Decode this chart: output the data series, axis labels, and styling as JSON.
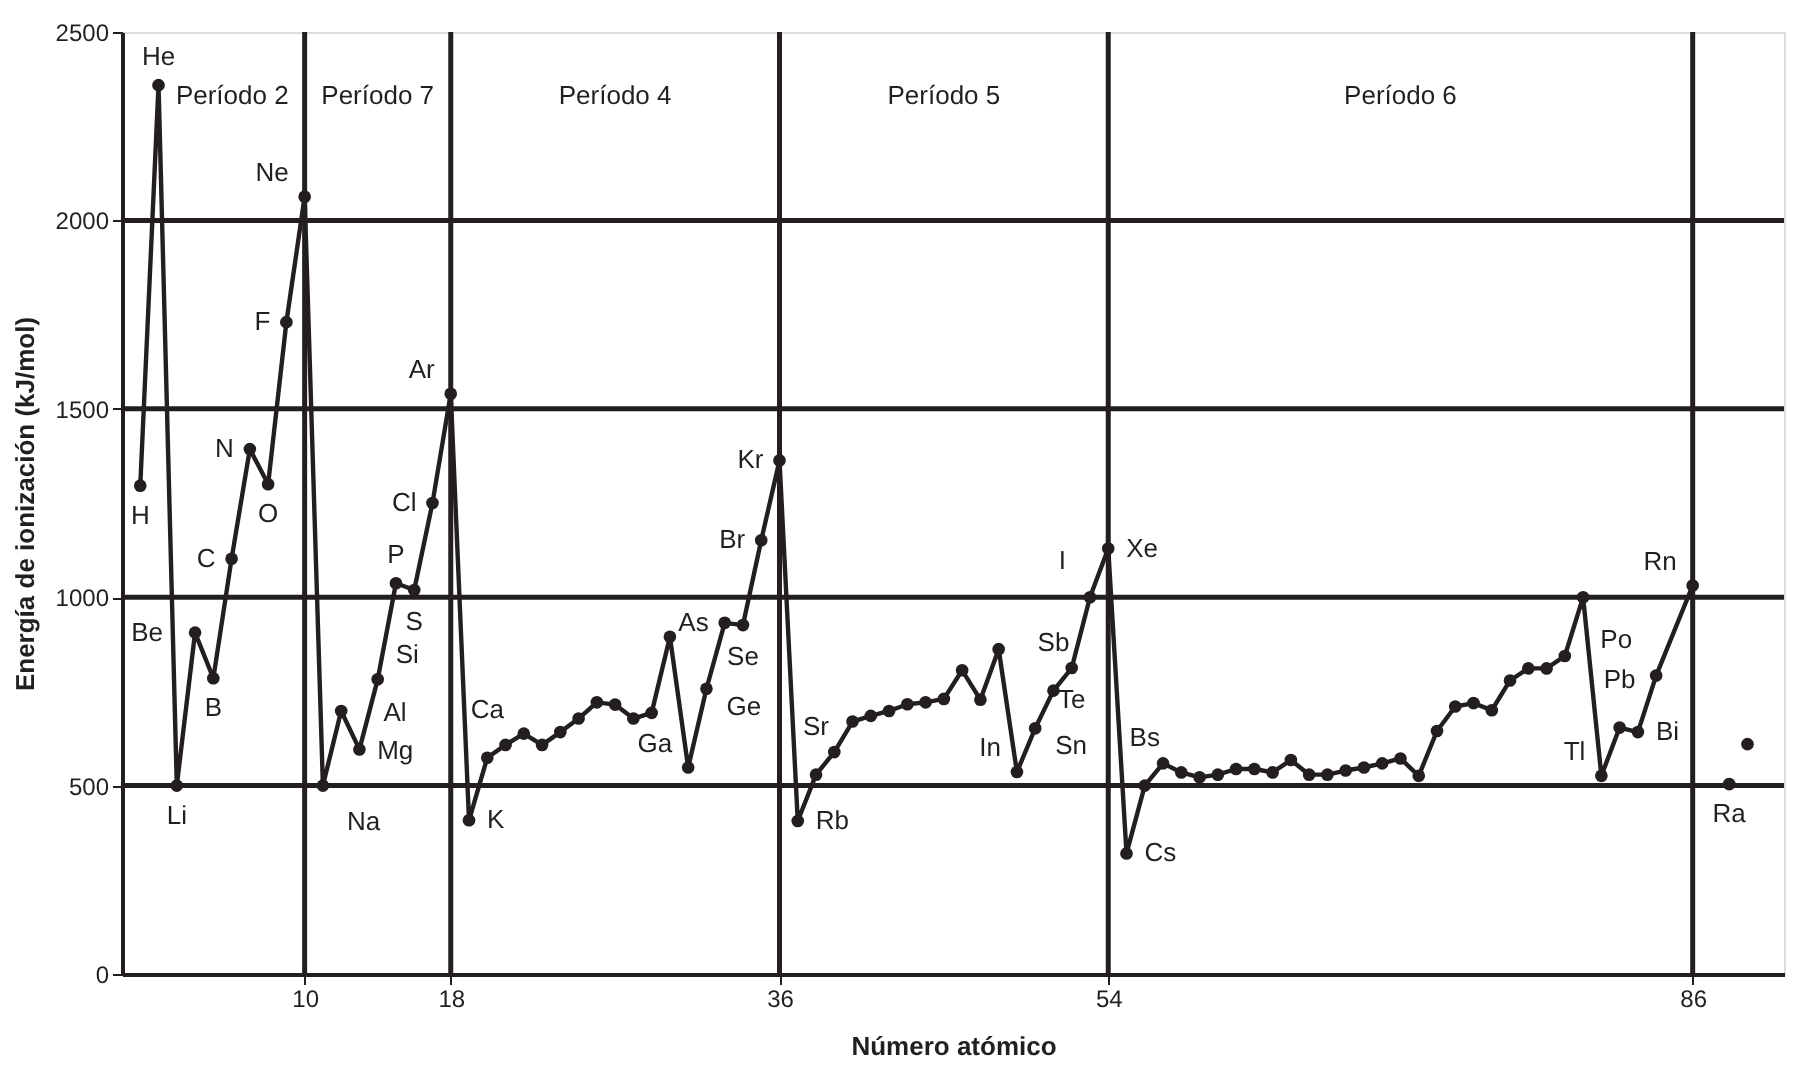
{
  "chart_data": {
    "type": "line",
    "xlabel": "Número atómico",
    "ylabel": "Energía de ionización (kJ/mol)",
    "xlim": [
      0,
      91
    ],
    "xticks": [
      10,
      18,
      36,
      54,
      86
    ],
    "ylim": [
      0,
      2500
    ],
    "yticks": [
      0,
      500,
      1000,
      1500,
      2000,
      2500
    ],
    "marker": "circle",
    "line_style": "solid",
    "series": [
      {
        "color": "#231f20",
        "x": [
          1,
          2,
          3,
          4,
          5,
          6,
          7,
          8,
          9,
          10,
          11,
          12,
          13,
          14,
          15,
          16,
          17,
          18,
          19,
          20,
          21,
          22,
          23,
          24,
          25,
          26,
          27,
          28,
          29,
          30,
          31,
          32,
          33,
          34,
          35,
          36,
          37,
          38,
          39,
          40,
          41,
          42,
          43,
          44,
          45,
          46,
          47,
          48,
          49,
          50,
          51,
          52,
          53,
          54,
          55,
          56,
          57,
          58,
          59,
          60,
          61,
          62,
          63,
          64,
          65,
          66,
          67,
          68,
          69,
          70,
          71,
          72,
          73,
          74,
          75,
          76,
          77,
          78,
          79,
          80,
          81,
          82,
          83,
          84,
          86
        ],
        "values": [
          1296,
          2359,
          500,
          906,
          785,
          1102,
          1393,
          1300,
          1730,
          2063,
          500,
          698,
          596,
          782,
          1037,
          1019,
          1250,
          1540,
          408,
          574,
          608,
          638,
          608,
          642,
          678,
          721,
          715,
          678,
          693,
          895,
          548,
          757,
          932,
          926,
          1151,
          1363,
          406,
          529,
          589,
          670,
          685,
          698,
          716,
          721,
          730,
          806,
          728,
          862,
          536,
          652,
          752,
          812,
          1000,
          1129,
          320,
          500,
          559,
          535,
          522,
          529,
          544,
          544,
          535,
          568,
          529,
          529,
          540,
          548,
          559,
          572,
          526,
          645,
          710,
          719,
          700,
          779,
          811,
          811,
          844,
          1000,
          526,
          654,
          642,
          792,
          1031
        ]
      },
      {
        "type": "scatter",
        "color": "#231f20",
        "x": [
          88,
          89
        ],
        "values": [
          504,
          610
        ]
      }
    ],
    "ref_lines": [
      {
        "axis": "y",
        "value": 500
      },
      {
        "axis": "y",
        "value": 1000
      },
      {
        "axis": "y",
        "value": 1500
      },
      {
        "axis": "y",
        "value": 2000
      },
      {
        "axis": "x",
        "value": 10
      },
      {
        "axis": "x",
        "value": 18
      },
      {
        "axis": "x",
        "value": 36
      },
      {
        "axis": "x",
        "value": 54
      },
      {
        "axis": "x",
        "value": 86
      }
    ],
    "annotations": [
      "Período 2",
      "Período 7",
      "Período 4",
      "Período 5",
      "Período 6",
      {
        "text": "H",
        "x": 1,
        "y": 1296
      },
      {
        "text": "He",
        "x": 2,
        "y": 2359
      },
      {
        "text": "Li",
        "x": 3,
        "y": 500
      },
      {
        "text": "Be",
        "x": 4,
        "y": 906
      },
      {
        "text": "B",
        "x": 5,
        "y": 785
      },
      {
        "text": "C",
        "x": 6,
        "y": 1102
      },
      {
        "text": "N",
        "x": 7,
        "y": 1393
      },
      {
        "text": "O",
        "x": 8,
        "y": 1300
      },
      {
        "text": "F",
        "x": 9,
        "y": 1730
      },
      {
        "text": "Ne",
        "x": 10,
        "y": 2063
      },
      {
        "text": "Na",
        "x": 11,
        "y": 500
      },
      {
        "text": "Mg",
        "x": 12,
        "y": 698
      },
      {
        "text": "Al",
        "x": 13,
        "y": 596
      },
      {
        "text": "Si",
        "x": 14,
        "y": 782
      },
      {
        "text": "P",
        "x": 15,
        "y": 1037
      },
      {
        "text": "S",
        "x": 16,
        "y": 1019
      },
      {
        "text": "Cl",
        "x": 17,
        "y": 1250
      },
      {
        "text": "Ar",
        "x": 18,
        "y": 1540
      },
      {
        "text": "K",
        "x": 19,
        "y": 408
      },
      {
        "text": "Ca",
        "x": 20,
        "y": 574
      },
      {
        "text": "Ga",
        "x": 31,
        "y": 548
      },
      {
        "text": "Ge",
        "x": 32,
        "y": 757
      },
      {
        "text": "As",
        "x": 33,
        "y": 932
      },
      {
        "text": "Se",
        "x": 34,
        "y": 926
      },
      {
        "text": "Br",
        "x": 35,
        "y": 1151
      },
      {
        "text": "Kr",
        "x": 36,
        "y": 1363
      },
      {
        "text": "Rb",
        "x": 37,
        "y": 406
      },
      {
        "text": "Sr",
        "x": 38,
        "y": 529
      },
      {
        "text": "In",
        "x": 49,
        "y": 536
      },
      {
        "text": "Sn",
        "x": 50,
        "y": 652
      },
      {
        "text": "Sb",
        "x": 51,
        "y": 752
      },
      {
        "text": "Te",
        "x": 52,
        "y": 812
      },
      {
        "text": "I",
        "x": 53,
        "y": 1000
      },
      {
        "text": "Xe",
        "x": 54,
        "y": 1129
      },
      {
        "text": "Cs",
        "x": 55,
        "y": 320
      },
      {
        "text": "Bs",
        "x": 56,
        "y": 500
      },
      {
        "text": "Tl",
        "x": 81,
        "y": 526
      },
      {
        "text": "Pb",
        "x": 82,
        "y": 654
      },
      {
        "text": "Bi",
        "x": 83,
        "y": 642
      },
      {
        "text": "Po",
        "x": 84,
        "y": 792
      },
      {
        "text": "Rn",
        "x": 86,
        "y": 1031
      },
      {
        "text": "Ra",
        "x": 88,
        "y": 504
      }
    ]
  }
}
